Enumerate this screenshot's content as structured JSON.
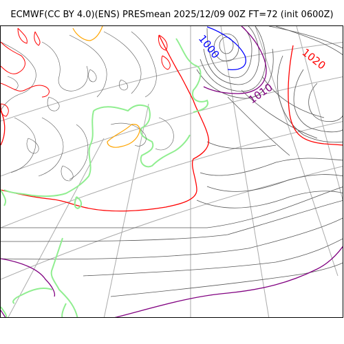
{
  "title": "ECMWF(CC BY 4.0)(ENS) PRESmean 2025/12/09 00Z FT=72 (init 0600Z)",
  "colors": {
    "isobar": "#555555",
    "isobar_1000": "#0000ff",
    "isobar_1010": "#800080",
    "isobar_1020": "#ff0000",
    "coastline": "#90ee90",
    "graticule": "#aaaaaa",
    "terrain_orange": "#ffa500"
  },
  "labels": {
    "l1000": "1000",
    "l1010": "1010",
    "l1020": "1020"
  }
}
